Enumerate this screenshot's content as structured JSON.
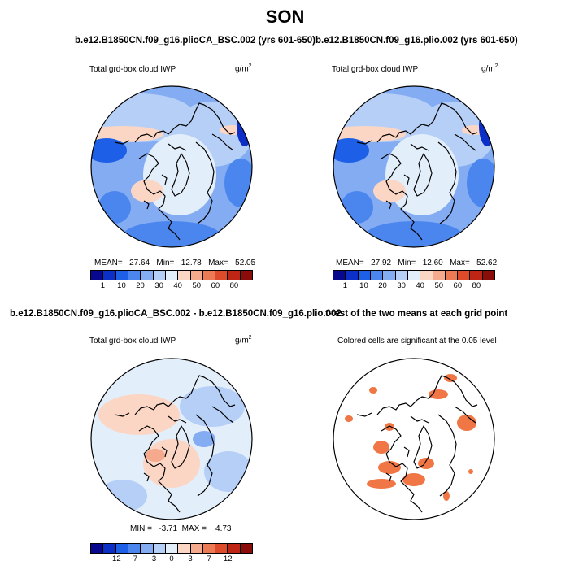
{
  "title": "SON",
  "panels": [
    {
      "case": "b.e12.B1850CN.f09_g16.plioCA_BSC.002 (yrs 601-650)",
      "variable": "Total grd-box cloud IWP",
      "unit_base": "g/m",
      "unit_exp": "2",
      "stats": "MEAN=   27.64   Min=   12.78   Max=   52.05",
      "colorbar_ticks": [
        "1",
        "10",
        "20",
        "30",
        "40",
        "50",
        "60",
        "80"
      ]
    },
    {
      "case": "b.e12.B1850CN.f09_g16.plio.002 (yrs 601-650)",
      "variable": "Total grd-box cloud IWP",
      "unit_base": "g/m",
      "unit_exp": "2",
      "stats": "MEAN=   27.92   Min=   12.60   Max=   52.62",
      "colorbar_ticks": [
        "1",
        "10",
        "20",
        "30",
        "40",
        "50",
        "60",
        "80"
      ]
    },
    {
      "case": "b.e12.B1850CN.f09_g16.plioCA_BSC.002 - b.e12.B1850CN.f09_g16.plio.002",
      "variable": "Total grd-box cloud IWP",
      "unit_base": "g/m",
      "unit_exp": "2",
      "stats": "MIN =   -3.71  MAX =    4.73",
      "colorbar_ticks": [
        "-12",
        "-7",
        "-3",
        "0",
        "3",
        "7",
        "12"
      ]
    },
    {
      "case": "t-test of the two means at each grid point",
      "variable": "Colored cells are significant at the 0.05 level"
    }
  ],
  "colors": {
    "abs_scale": [
      "#08088f",
      "#0b2fc7",
      "#1d5fe6",
      "#4a86ee",
      "#84acf3",
      "#b6cff7",
      "#e3eefb",
      "#fbd6c5",
      "#f5aa8d",
      "#ec7a55",
      "#dd4b2b",
      "#be2515",
      "#8a0d0a"
    ],
    "diff_scale": [
      "#08088f",
      "#0b2fc7",
      "#1d5fe6",
      "#4a86ee",
      "#84acf3",
      "#b6cff7",
      "#e3eefb",
      "#fbd6c5",
      "#f5aa8d",
      "#ec7a55",
      "#dd4b2b",
      "#be2515",
      "#8a0d0a"
    ],
    "significant": "#f07745"
  }
}
